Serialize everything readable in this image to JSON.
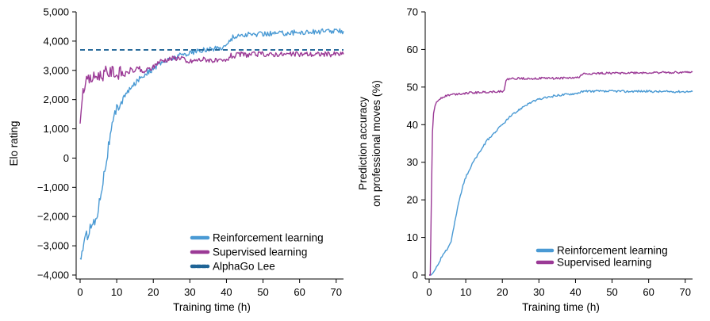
{
  "chart_data": [
    {
      "type": "line",
      "title": "",
      "xlabel": "Training time (h)",
      "ylabel": "Elo rating",
      "xlim": [
        0,
        72
      ],
      "ylim": [
        -4000,
        5000
      ],
      "xticks": [
        0,
        10,
        20,
        30,
        40,
        50,
        60,
        70
      ],
      "xtick_labels": [
        "0",
        "10",
        "20",
        "30",
        "40",
        "50",
        "60",
        "70"
      ],
      "yticks": [
        -4000,
        -3000,
        -2000,
        -1000,
        0,
        1000,
        2000,
        3000,
        4000,
        5000
      ],
      "ytick_labels": [
        "−4,000",
        "−3,000",
        "−2,000",
        "−1,000",
        "0",
        "1,000",
        "2,000",
        "3,000",
        "4,000",
        "5,000"
      ],
      "legend_position": "bottom-right",
      "grid": false,
      "series": [
        {
          "name": "Reinforcement learning",
          "color": "#4a9ad4",
          "style": "solid",
          "x": [
            0,
            1,
            2,
            3,
            4,
            5,
            6,
            7,
            8,
            9,
            10,
            12,
            14,
            16,
            18,
            20,
            22,
            24,
            26,
            28,
            30,
            32,
            34,
            36,
            38,
            40,
            41,
            42,
            44,
            46,
            48,
            50,
            52,
            54,
            56,
            58,
            60,
            62,
            64,
            66,
            68,
            70,
            72
          ],
          "y": [
            -3500,
            -2900,
            -2600,
            -2300,
            -2200,
            -1700,
            -900,
            -200,
            600,
            1200,
            1700,
            2100,
            2400,
            2700,
            2900,
            3050,
            3250,
            3350,
            3450,
            3550,
            3600,
            3650,
            3700,
            3730,
            3760,
            3850,
            4050,
            4150,
            4200,
            4220,
            4230,
            4250,
            4260,
            4270,
            4280,
            4290,
            4300,
            4310,
            4320,
            4330,
            4340,
            4340,
            4340
          ]
        },
        {
          "name": "Supervised learning",
          "color": "#9b3a96",
          "style": "solid",
          "x": [
            0,
            0.3,
            0.6,
            1,
            1.5,
            2,
            3,
            4,
            5,
            6,
            7,
            8,
            9,
            10,
            11,
            12,
            13,
            14,
            15,
            16,
            17,
            18,
            19,
            20,
            21,
            22,
            24,
            26,
            28,
            29,
            30,
            32,
            34,
            36,
            38,
            40,
            41,
            42,
            44,
            46,
            48,
            50,
            52,
            54,
            56,
            58,
            60,
            62,
            64,
            66,
            68,
            70,
            72
          ],
          "y": [
            1000,
            1800,
            2200,
            2400,
            2550,
            2650,
            2700,
            2780,
            2850,
            2800,
            2950,
            2900,
            3000,
            2820,
            2950,
            2850,
            2900,
            3050,
            2950,
            3100,
            2900,
            3000,
            3050,
            3100,
            3250,
            3320,
            3380,
            3420,
            3450,
            3250,
            3300,
            3350,
            3380,
            3350,
            3300,
            3320,
            3500,
            3480,
            3550,
            3530,
            3550,
            3560,
            3530,
            3560,
            3540,
            3550,
            3550,
            3560,
            3540,
            3560,
            3550,
            3560,
            3550
          ]
        },
        {
          "name": "AlphaGo Lee",
          "color": "#1f6496",
          "style": "dashed",
          "x": [
            0,
            72
          ],
          "y": [
            3700,
            3700
          ]
        }
      ]
    },
    {
      "type": "line",
      "title": "",
      "xlabel": "Training time (h)",
      "ylabel": "Prediction accuracy\non professional moves (%)",
      "ylabel_lines": [
        "Prediction accuracy",
        "on professional moves (%)"
      ],
      "xlim": [
        0,
        72
      ],
      "ylim": [
        0,
        70
      ],
      "xticks": [
        0,
        10,
        20,
        30,
        40,
        50,
        60,
        70
      ],
      "xtick_labels": [
        "0",
        "10",
        "20",
        "30",
        "40",
        "50",
        "60",
        "70"
      ],
      "yticks": [
        0,
        10,
        20,
        30,
        40,
        50,
        60,
        70
      ],
      "ytick_labels": [
        "0",
        "10",
        "20",
        "30",
        "40",
        "50",
        "60",
        "70"
      ],
      "legend_position": "bottom-right",
      "grid": false,
      "series": [
        {
          "name": "Reinforcement learning",
          "color": "#4a9ad4",
          "style": "solid",
          "x": [
            0,
            0.5,
            1,
            2,
            3,
            4,
            5,
            6,
            7,
            8,
            9,
            10,
            12,
            14,
            16,
            18,
            20,
            22,
            24,
            26,
            28,
            30,
            32,
            34,
            36,
            38,
            40,
            42,
            44,
            46,
            48,
            50,
            52,
            54,
            56,
            58,
            60,
            62,
            64,
            66,
            68,
            70,
            72
          ],
          "y": [
            0,
            0,
            0.5,
            2,
            4,
            6,
            7,
            9,
            14,
            19,
            23,
            26,
            30,
            33,
            36,
            38,
            40,
            42,
            43.5,
            45,
            46,
            46.7,
            47.2,
            47.6,
            47.9,
            48.1,
            48.3,
            48.8,
            48.9,
            48.9,
            48.8,
            48.9,
            48.9,
            48.8,
            48.9,
            48.9,
            48.9,
            48.8,
            48.8,
            48.8,
            48.8,
            48.8,
            48.8
          ]
        },
        {
          "name": "Supervised learning",
          "color": "#9b3a96",
          "style": "solid",
          "x": [
            0,
            0.3,
            0.6,
            0.9,
            1.2,
            1.6,
            2,
            3,
            4,
            5,
            6,
            8,
            10,
            12,
            14,
            16,
            18,
            20,
            20.5,
            21,
            21.5,
            22,
            24,
            26,
            28,
            30,
            32,
            34,
            36,
            38,
            40,
            41,
            42,
            44,
            46,
            48,
            50,
            52,
            54,
            56,
            58,
            60,
            62,
            64,
            66,
            68,
            70,
            72
          ],
          "y": [
            0,
            0,
            20,
            38,
            43,
            45,
            46,
            47,
            47.5,
            47.8,
            48,
            48.2,
            48.4,
            48.5,
            48.6,
            48.7,
            48.8,
            48.9,
            49.3,
            51.5,
            52.1,
            52.2,
            52.3,
            52.3,
            52.3,
            52.3,
            52.4,
            52.3,
            52.4,
            52.4,
            52.5,
            52.6,
            53.5,
            53.6,
            53.6,
            53.7,
            53.7,
            53.7,
            53.8,
            53.8,
            53.8,
            53.8,
            53.8,
            53.9,
            53.9,
            53.9,
            53.9,
            54.0
          ]
        }
      ]
    }
  ]
}
